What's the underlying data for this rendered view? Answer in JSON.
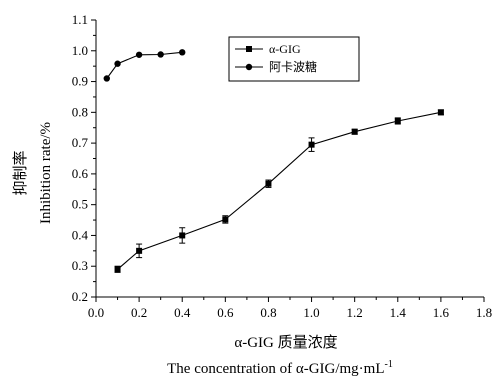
{
  "chart_data": {
    "type": "line",
    "xlabel_cn": "α-GIG 质量浓度",
    "xlabel_en": "The concentration of α-GIG/mg·mL",
    "xlabel_en_superscript": "-1",
    "ylabel_cn": "抑制率",
    "ylabel_en": "Inhibition rate/%",
    "xlim": [
      0,
      1.8
    ],
    "ylim": [
      0.2,
      1.1
    ],
    "x_ticks": [
      "0.0",
      "0.2",
      "0.4",
      "0.6",
      "0.8",
      "1.0",
      "1.2",
      "1.4",
      "1.6",
      "1.8"
    ],
    "y_ticks": [
      "0.2",
      "0.3",
      "0.4",
      "0.5",
      "0.6",
      "0.7",
      "0.8",
      "0.9",
      "1.0",
      "1.1"
    ],
    "legend_position": "top-center",
    "grid": false,
    "series": [
      {
        "name": "α-GIG",
        "marker": "square",
        "x": [
          0.1,
          0.2,
          0.4,
          0.6,
          0.8,
          1.0,
          1.2,
          1.4,
          1.6
        ],
        "y": [
          0.29,
          0.35,
          0.4,
          0.452,
          0.568,
          0.695,
          0.737,
          0.772,
          0.8
        ],
        "error": [
          0.01,
          0.022,
          0.025,
          0.012,
          0.012,
          0.022,
          0.008,
          0.01,
          0.008
        ]
      },
      {
        "name": "阿卡波糖",
        "marker": "circle",
        "x": [
          0.05,
          0.1,
          0.2,
          0.3,
          0.4
        ],
        "y": [
          0.91,
          0.958,
          0.987,
          0.988,
          0.995
        ],
        "error": [
          0,
          0,
          0,
          0,
          0
        ]
      }
    ]
  }
}
